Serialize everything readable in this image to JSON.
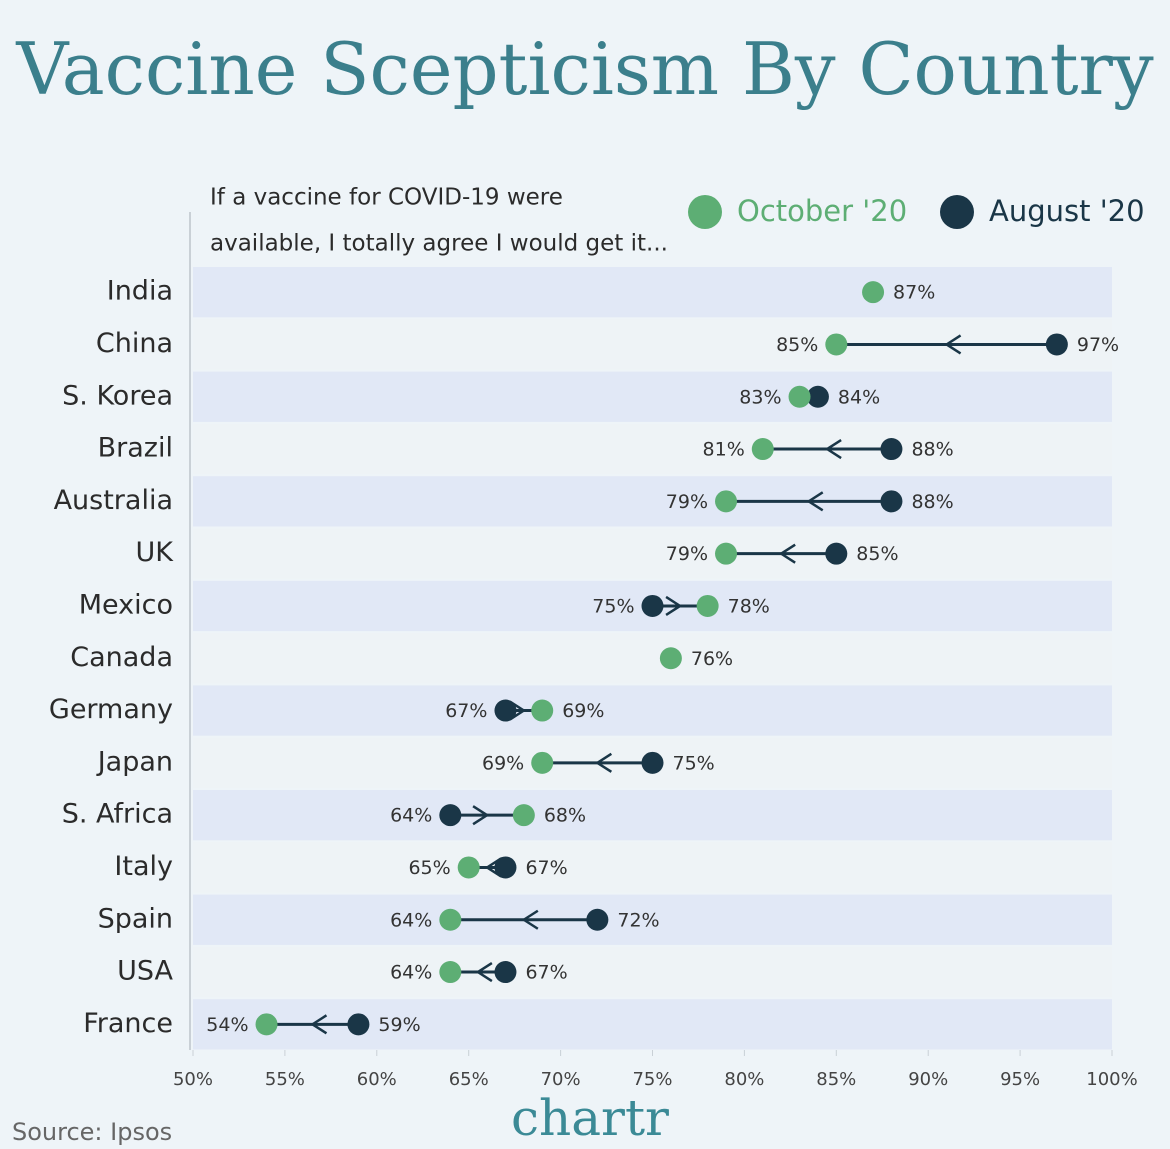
{
  "chart_data": {
    "type": "dumbbell",
    "title": "Vaccine Scepticism By Country",
    "subtitle": [
      "If a vaccine for COVID-19 were",
      "available, I totally agree I would get it..."
    ],
    "categories": [
      "India",
      "China",
      "S. Korea",
      "Brazil",
      "Australia",
      "UK",
      "Mexico",
      "Canada",
      "Germany",
      "Japan",
      "S. Africa",
      "Italy",
      "Spain",
      "USA",
      "France"
    ],
    "series": [
      {
        "name": "October '20",
        "color": "#5dae74",
        "values": [
          87,
          85,
          83,
          81,
          79,
          79,
          78,
          76,
          69,
          69,
          68,
          65,
          64,
          64,
          54
        ],
        "value_labels": [
          "87%",
          "85%",
          "83%",
          "81%",
          "79%",
          "79%",
          "78%",
          "76%",
          "69%",
          "69%",
          "68%",
          "65%",
          "64%",
          "64%",
          "54%"
        ]
      },
      {
        "name": "August '20",
        "color": "#1a3647",
        "values": [
          null,
          97,
          84,
          88,
          88,
          85,
          75,
          null,
          67,
          75,
          64,
          67,
          72,
          67,
          59
        ],
        "value_labels": [
          null,
          "97%",
          "84%",
          "88%",
          "88%",
          "85%",
          "75%",
          null,
          "67%",
          "75%",
          "64%",
          "67%",
          "72%",
          "67%",
          "59%"
        ]
      }
    ],
    "xlim": [
      50,
      100
    ],
    "xticks": [
      {
        "value": 50,
        "label": "50%"
      },
      {
        "value": 55,
        "label": "55%"
      },
      {
        "value": 60,
        "label": "60%"
      },
      {
        "value": 65,
        "label": "65%"
      },
      {
        "value": 70,
        "label": "70%"
      },
      {
        "value": 75,
        "label": "75%"
      },
      {
        "value": 80,
        "label": "80%"
      },
      {
        "value": 85,
        "label": "85%"
      },
      {
        "value": 90,
        "label": "90%"
      },
      {
        "value": 95,
        "label": "95%"
      },
      {
        "value": 100,
        "label": "100%"
      }
    ],
    "legend": "top-right",
    "source": "Source: Ipsos",
    "brand": "chartr"
  }
}
